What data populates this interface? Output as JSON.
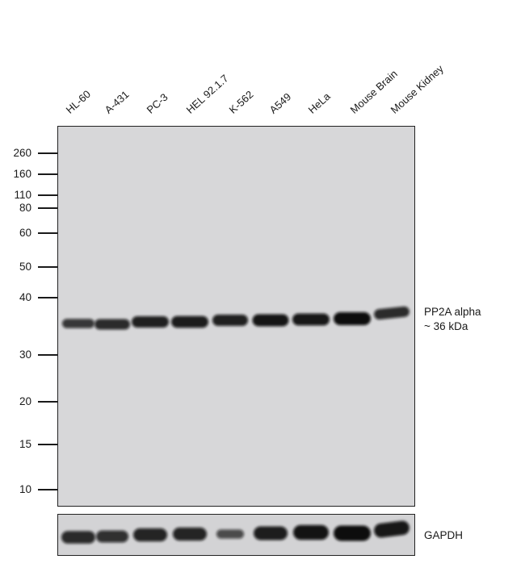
{
  "lanes": [
    "HL-60",
    "A-431",
    "PC-3",
    "HEL 92.1.7",
    "K-562",
    "A549",
    "HeLa",
    "Mouse Brain",
    "Mouse Kidney"
  ],
  "mw_markers": [
    "260",
    "160",
    "110",
    "80",
    "60",
    "50",
    "40",
    "30",
    "20",
    "15",
    "10"
  ],
  "target_label": {
    "name": "PP2A alpha",
    "size": "~ 36 kDa"
  },
  "loading_control_label": "GAPDH",
  "main_band_intensity": [
    0.55,
    0.7,
    0.8,
    0.85,
    0.8,
    0.9,
    0.88,
    1.0,
    0.7
  ],
  "gapdh_band_intensity": [
    0.75,
    0.7,
    0.8,
    0.8,
    0.45,
    0.85,
    0.95,
    1.0,
    0.9
  ],
  "colors": {
    "membrane": "#d7d7d9",
    "band": "#0a0a0a",
    "text": "#1a1a1a"
  }
}
